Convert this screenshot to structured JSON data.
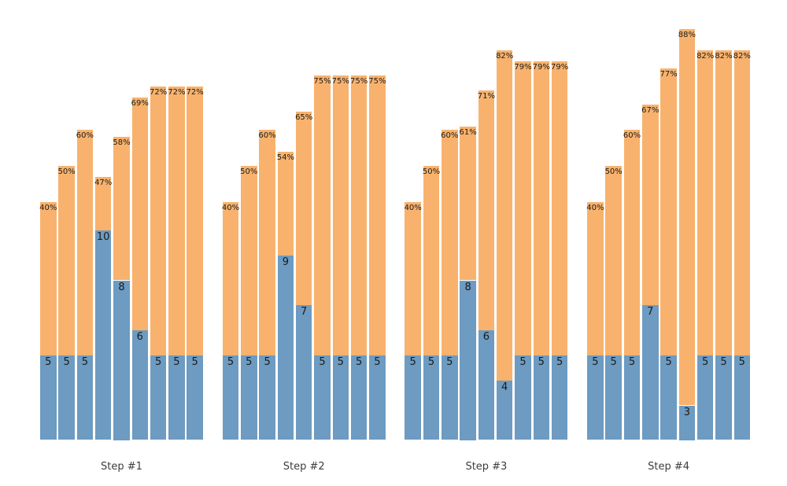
{
  "chart_data": {
    "type": "bar",
    "variant": "grouped-stacked",
    "title": "",
    "xlabel": "",
    "ylabel": "",
    "legend": "none",
    "axes_visible": false,
    "grid": false,
    "background": "#ffffff",
    "colors": {
      "bottom_segment": "#6d9bc1",
      "top_segment": "#f8b26d",
      "value_label": "#1a1a1a",
      "percent_label": "#1a1a1a",
      "step_label": "#3d3d3d"
    },
    "groups": [
      {
        "label": "Step #1",
        "values": [
          5,
          5,
          5,
          10,
          8,
          6,
          5,
          5,
          5
        ],
        "percents": [
          40,
          50,
          60,
          47,
          58,
          69,
          72,
          72,
          72
        ]
      },
      {
        "label": "Step #2",
        "values": [
          5,
          5,
          5,
          9,
          7,
          5,
          5,
          5,
          5
        ],
        "percents": [
          40,
          50,
          60,
          54,
          65,
          75,
          75,
          75,
          75
        ]
      },
      {
        "label": "Step #3",
        "values": [
          5,
          5,
          5,
          8,
          6,
          4,
          5,
          5,
          5
        ],
        "percents": [
          40,
          50,
          60,
          61,
          71,
          82,
          79,
          79,
          79
        ]
      },
      {
        "label": "Step #4",
        "values": [
          5,
          5,
          5,
          7,
          5,
          3,
          5,
          5,
          5
        ],
        "percents": [
          40,
          50,
          60,
          67,
          77,
          88,
          82,
          82,
          82
        ]
      }
    ],
    "percent_suffix": "%"
  }
}
